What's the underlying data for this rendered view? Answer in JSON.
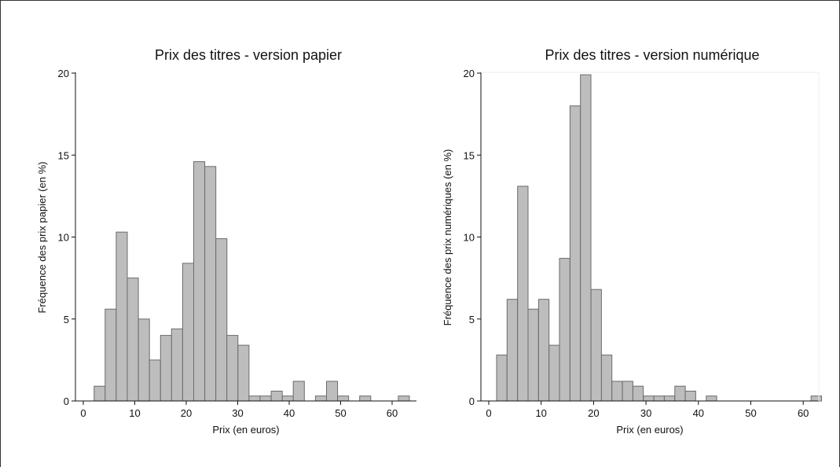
{
  "chart_data": [
    {
      "type": "bar",
      "title": "Prix des titres - version papier",
      "xlabel": "Prix (en euros)",
      "ylabel": "Fréquence des prix papier (en %)",
      "xlim": [
        0,
        64
      ],
      "ylim": [
        0,
        20
      ],
      "xticks": [
        0,
        10,
        20,
        30,
        40,
        50,
        60
      ],
      "yticks": [
        0,
        5,
        10,
        15,
        20
      ],
      "grid": false,
      "bin_width": 2.15,
      "bins": [
        {
          "x": 2.1,
          "value": 0.9
        },
        {
          "x": 4.25,
          "value": 5.6
        },
        {
          "x": 6.4,
          "value": 10.3
        },
        {
          "x": 8.55,
          "value": 7.5
        },
        {
          "x": 10.7,
          "value": 5.0
        },
        {
          "x": 12.85,
          "value": 2.5
        },
        {
          "x": 15.0,
          "value": 4.0
        },
        {
          "x": 17.15,
          "value": 4.4
        },
        {
          "x": 19.3,
          "value": 8.4
        },
        {
          "x": 21.45,
          "value": 14.6
        },
        {
          "x": 23.6,
          "value": 14.3
        },
        {
          "x": 25.75,
          "value": 9.9
        },
        {
          "x": 27.9,
          "value": 4.0
        },
        {
          "x": 30.05,
          "value": 3.4
        },
        {
          "x": 32.2,
          "value": 0.3
        },
        {
          "x": 34.35,
          "value": 0.3
        },
        {
          "x": 36.5,
          "value": 0.6
        },
        {
          "x": 38.65,
          "value": 0.3
        },
        {
          "x": 40.8,
          "value": 1.2
        },
        {
          "x": 45.1,
          "value": 0.3
        },
        {
          "x": 47.25,
          "value": 1.2
        },
        {
          "x": 49.4,
          "value": 0.3
        },
        {
          "x": 53.7,
          "value": 0.3
        },
        {
          "x": 61.2,
          "value": 0.3
        }
      ]
    },
    {
      "type": "bar",
      "title": "Prix des titres - version numérique",
      "xlabel": "Prix (en euros)",
      "ylabel": "Fréquence des prix numériques (en %)",
      "xlim": [
        0,
        62
      ],
      "ylim": [
        0,
        20
      ],
      "xticks": [
        0,
        10,
        20,
        30,
        40,
        50,
        60
      ],
      "yticks": [
        0,
        5,
        10,
        15,
        20
      ],
      "grid": false,
      "bin_width": 2.0,
      "bins": [
        {
          "x": 1.5,
          "value": 2.8
        },
        {
          "x": 3.5,
          "value": 6.2
        },
        {
          "x": 5.5,
          "value": 13.1
        },
        {
          "x": 7.5,
          "value": 5.6
        },
        {
          "x": 9.5,
          "value": 6.2
        },
        {
          "x": 11.5,
          "value": 3.4
        },
        {
          "x": 13.5,
          "value": 8.7
        },
        {
          "x": 15.5,
          "value": 18.0
        },
        {
          "x": 17.5,
          "value": 19.9
        },
        {
          "x": 19.5,
          "value": 6.8
        },
        {
          "x": 21.5,
          "value": 2.8
        },
        {
          "x": 23.5,
          "value": 1.2
        },
        {
          "x": 25.5,
          "value": 1.2
        },
        {
          "x": 27.5,
          "value": 0.9
        },
        {
          "x": 29.5,
          "value": 0.3
        },
        {
          "x": 31.5,
          "value": 0.3
        },
        {
          "x": 33.5,
          "value": 0.3
        },
        {
          "x": 35.5,
          "value": 0.9
        },
        {
          "x": 37.5,
          "value": 0.6
        },
        {
          "x": 41.5,
          "value": 0.3
        },
        {
          "x": 61.5,
          "value": 0.3
        }
      ]
    }
  ]
}
